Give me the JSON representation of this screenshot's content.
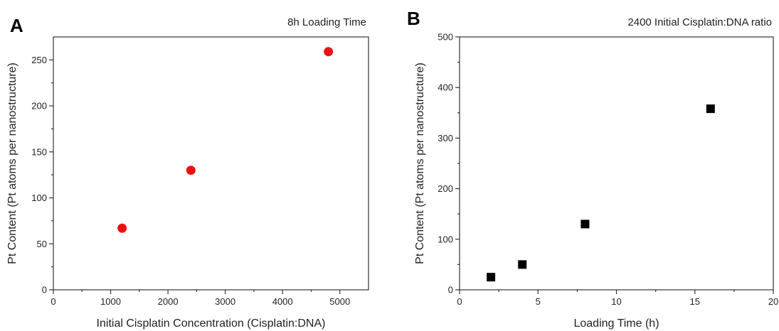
{
  "chart_data": [
    {
      "panel": "A",
      "type": "scatter",
      "title": "8h Loading Time",
      "xlabel": "Initial Cisplatin Concentration (Cisplatin:DNA)",
      "ylabel": "Pt Content (Pt atoms per nanostructure)",
      "xlim": [
        0,
        5500
      ],
      "ylim": [
        0,
        275
      ],
      "xticks": [
        0,
        1000,
        2000,
        3000,
        4000,
        5000
      ],
      "yticks": [
        0,
        50,
        100,
        150,
        200,
        250
      ],
      "marker": "circle",
      "color": "#ee1111",
      "x": [
        1200,
        2400,
        4800
      ],
      "y": [
        67,
        130,
        259
      ]
    },
    {
      "panel": "B",
      "type": "scatter",
      "title": "2400 Initial Cisplatin:DNA ratio",
      "xlabel": "Loading Time (h)",
      "ylabel": "Pt Content (Pt atoms per nanostructure)",
      "xlim": [
        0,
        20
      ],
      "ylim": [
        0,
        500
      ],
      "xticks": [
        0,
        5,
        10,
        15,
        20
      ],
      "yticks": [
        0,
        100,
        200,
        300,
        400,
        500
      ],
      "marker": "square",
      "color": "#000000",
      "x": [
        2,
        4,
        8,
        16
      ],
      "y": [
        25,
        50,
        130,
        358
      ]
    }
  ]
}
